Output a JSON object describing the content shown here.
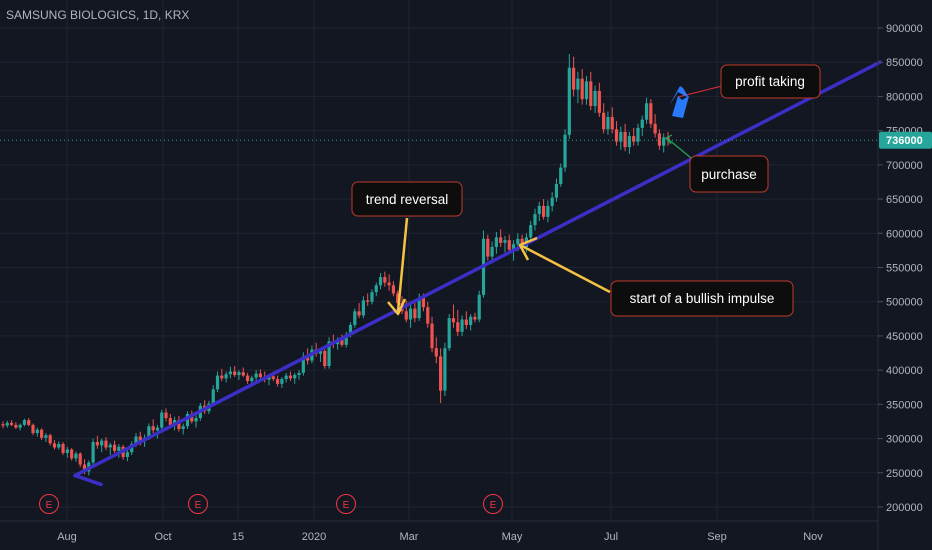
{
  "header": {
    "title": "SAMSUNG BIOLOGICS, 1D, KRX"
  },
  "theme": {
    "background": "#131722",
    "grid": "#1f2430",
    "up_color": "#26a69a",
    "down_color": "#ef5350",
    "trendline_color": "#3c2fc8",
    "annotation_border": "#c0392b",
    "yellow_arrow": "#f5c242",
    "red_arrow": "#e0303a",
    "green_arrow": "#22aa55",
    "blue_arrow": "#2979ff",
    "price_line_color": "#26a69a"
  },
  "chart_data": {
    "type": "candlestick",
    "title": "SAMSUNG BIOLOGICS, 1D, KRX",
    "x_ticks": [
      "Aug",
      "Oct",
      "15",
      "2020",
      "Mar",
      "May",
      "Jul",
      "Sep",
      "Nov"
    ],
    "y_ticks": [
      200000,
      250000,
      300000,
      350000,
      400000,
      450000,
      500000,
      550000,
      600000,
      650000,
      700000,
      750000,
      800000,
      850000,
      900000
    ],
    "ylim": [
      185000,
      920000
    ],
    "last_price": 736000,
    "last_price_label": "736000",
    "earnings_markers": [
      "E",
      "E",
      "E",
      "E"
    ],
    "series": [
      {
        "values": [
          [
            321000,
            325000,
            315000,
            319000
          ],
          [
            319000,
            326000,
            316000,
            323000
          ],
          [
            323000,
            327000,
            318000,
            320000
          ],
          [
            320000,
            324000,
            314000,
            316000
          ],
          [
            316000,
            322000,
            312000,
            320000
          ],
          [
            320000,
            329000,
            318000,
            327000
          ],
          [
            327000,
            330000,
            318000,
            320000
          ],
          [
            320000,
            322000,
            305000,
            308000
          ],
          [
            308000,
            316000,
            303000,
            313000
          ],
          [
            313000,
            315000,
            298000,
            301000
          ],
          [
            301000,
            308000,
            295000,
            305000
          ],
          [
            305000,
            307000,
            290000,
            293000
          ],
          [
            293000,
            298000,
            284000,
            287000
          ],
          [
            287000,
            296000,
            284000,
            292000
          ],
          [
            292000,
            295000,
            276000,
            279000
          ],
          [
            279000,
            288000,
            272000,
            284000
          ],
          [
            284000,
            286000,
            268000,
            271000
          ],
          [
            271000,
            281000,
            266000,
            278000
          ],
          [
            278000,
            280000,
            258000,
            262000
          ],
          [
            262000,
            270000,
            248000,
            252000
          ],
          [
            252000,
            268000,
            246000,
            265000
          ],
          [
            265000,
            300000,
            262000,
            295000
          ],
          [
            295000,
            304000,
            285000,
            290000
          ],
          [
            290000,
            300000,
            280000,
            297000
          ],
          [
            297000,
            302000,
            283000,
            287000
          ],
          [
            287000,
            294000,
            276000,
            291000
          ],
          [
            291000,
            297000,
            279000,
            282000
          ],
          [
            282000,
            292000,
            272000,
            288000
          ],
          [
            288000,
            291000,
            269000,
            273000
          ],
          [
            273000,
            284000,
            267000,
            280000
          ],
          [
            280000,
            296000,
            276000,
            292000
          ],
          [
            292000,
            308000,
            288000,
            303000
          ],
          [
            303000,
            310000,
            290000,
            296000
          ],
          [
            296000,
            306000,
            288000,
            301000
          ],
          [
            301000,
            322000,
            298000,
            318000
          ],
          [
            318000,
            328000,
            308000,
            312000
          ],
          [
            312000,
            320000,
            300000,
            316000
          ],
          [
            316000,
            342000,
            312000,
            338000
          ],
          [
            338000,
            344000,
            325000,
            330000
          ],
          [
            330000,
            336000,
            316000,
            320000
          ],
          [
            320000,
            332000,
            312000,
            327000
          ],
          [
            327000,
            333000,
            310000,
            314000
          ],
          [
            314000,
            322000,
            306000,
            318000
          ],
          [
            318000,
            340000,
            314000,
            336000
          ],
          [
            336000,
            341000,
            322000,
            325000
          ],
          [
            325000,
            334000,
            316000,
            330000
          ],
          [
            330000,
            352000,
            326000,
            348000
          ],
          [
            348000,
            356000,
            336000,
            340000
          ],
          [
            340000,
            355000,
            336000,
            351000
          ],
          [
            351000,
            378000,
            348000,
            372000
          ],
          [
            372000,
            398000,
            368000,
            392000
          ],
          [
            392000,
            402000,
            384000,
            388000
          ],
          [
            388000,
            398000,
            382000,
            394000
          ],
          [
            394000,
            405000,
            388000,
            398000
          ],
          [
            398000,
            406000,
            390000,
            393000
          ],
          [
            393000,
            400000,
            386000,
            397000
          ],
          [
            397000,
            404000,
            390000,
            392000
          ],
          [
            392000,
            396000,
            380000,
            384000
          ],
          [
            384000,
            392000,
            378000,
            389000
          ],
          [
            389000,
            400000,
            384000,
            395000
          ],
          [
            395000,
            401000,
            386000,
            390000
          ],
          [
            390000,
            398000,
            382000,
            386000
          ],
          [
            386000,
            394000,
            378000,
            391000
          ],
          [
            391000,
            398000,
            384000,
            387000
          ],
          [
            387000,
            392000,
            376000,
            380000
          ],
          [
            380000,
            390000,
            374000,
            387000
          ],
          [
            387000,
            396000,
            382000,
            392000
          ],
          [
            392000,
            398000,
            384000,
            388000
          ],
          [
            388000,
            396000,
            380000,
            393000
          ],
          [
            393000,
            400000,
            386000,
            396000
          ],
          [
            396000,
            426000,
            392000,
            420000
          ],
          [
            420000,
            432000,
            408000,
            414000
          ],
          [
            414000,
            436000,
            410000,
            430000
          ],
          [
            430000,
            440000,
            420000,
            424000
          ],
          [
            424000,
            432000,
            412000,
            428000
          ],
          [
            428000,
            436000,
            402000,
            406000
          ],
          [
            406000,
            448000,
            402000,
            442000
          ],
          [
            442000,
            452000,
            432000,
            438000
          ],
          [
            438000,
            448000,
            430000,
            444000
          ],
          [
            444000,
            452000,
            434000,
            437000
          ],
          [
            437000,
            456000,
            433000,
            452000
          ],
          [
            452000,
            470000,
            448000,
            466000
          ],
          [
            466000,
            490000,
            462000,
            486000
          ],
          [
            486000,
            498000,
            476000,
            480000
          ],
          [
            480000,
            508000,
            476000,
            502000
          ],
          [
            502000,
            512000,
            494000,
            500000
          ],
          [
            500000,
            518000,
            496000,
            514000
          ],
          [
            514000,
            528000,
            508000,
            524000
          ],
          [
            524000,
            542000,
            518000,
            536000
          ],
          [
            536000,
            544000,
            522000,
            528000
          ],
          [
            528000,
            540000,
            516000,
            524000
          ],
          [
            524000,
            530000,
            508000,
            512000
          ],
          [
            512000,
            516000,
            494000,
            498000
          ],
          [
            498000,
            508000,
            482000,
            486000
          ],
          [
            486000,
            502000,
            470000,
            474000
          ],
          [
            474000,
            496000,
            462000,
            490000
          ],
          [
            490000,
            498000,
            470000,
            476000
          ],
          [
            476000,
            512000,
            472000,
            506000
          ],
          [
            506000,
            512000,
            486000,
            492000
          ],
          [
            492000,
            500000,
            462000,
            468000
          ],
          [
            468000,
            478000,
            426000,
            432000
          ],
          [
            432000,
            448000,
            410000,
            420000
          ],
          [
            420000,
            432000,
            352000,
            370000
          ],
          [
            370000,
            440000,
            362000,
            432000
          ],
          [
            432000,
            482000,
            428000,
            476000
          ],
          [
            476000,
            496000,
            462000,
            470000
          ],
          [
            470000,
            488000,
            450000,
            456000
          ],
          [
            456000,
            480000,
            450000,
            474000
          ],
          [
            474000,
            486000,
            460000,
            466000
          ],
          [
            466000,
            482000,
            458000,
            478000
          ],
          [
            478000,
            484000,
            470000,
            474000
          ],
          [
            474000,
            516000,
            470000,
            510000
          ],
          [
            510000,
            604000,
            506000,
            592000
          ],
          [
            592000,
            598000,
            560000,
            566000
          ],
          [
            566000,
            588000,
            556000,
            580000
          ],
          [
            580000,
            602000,
            570000,
            594000
          ],
          [
            594000,
            606000,
            580000,
            586000
          ],
          [
            586000,
            596000,
            572000,
            590000
          ],
          [
            590000,
            598000,
            570000,
            576000
          ],
          [
            576000,
            590000,
            560000,
            584000
          ],
          [
            584000,
            600000,
            574000,
            592000
          ],
          [
            592000,
            598000,
            574000,
            580000
          ],
          [
            580000,
            600000,
            572000,
            594000
          ],
          [
            594000,
            618000,
            588000,
            612000
          ],
          [
            612000,
            636000,
            604000,
            628000
          ],
          [
            628000,
            646000,
            618000,
            640000
          ],
          [
            640000,
            650000,
            620000,
            624000
          ],
          [
            624000,
            648000,
            616000,
            640000
          ],
          [
            640000,
            660000,
            632000,
            652000
          ],
          [
            652000,
            680000,
            646000,
            672000
          ],
          [
            672000,
            702000,
            668000,
            696000
          ],
          [
            696000,
            752000,
            690000,
            744000
          ],
          [
            744000,
            862000,
            738000,
            842000
          ],
          [
            842000,
            858000,
            800000,
            810000
          ],
          [
            810000,
            836000,
            790000,
            826000
          ],
          [
            826000,
            840000,
            788000,
            796000
          ],
          [
            796000,
            830000,
            788000,
            822000
          ],
          [
            822000,
            836000,
            780000,
            786000
          ],
          [
            786000,
            816000,
            776000,
            808000
          ],
          [
            808000,
            820000,
            770000,
            776000
          ],
          [
            776000,
            790000,
            746000,
            752000
          ],
          [
            752000,
            778000,
            744000,
            770000
          ],
          [
            770000,
            784000,
            746000,
            752000
          ],
          [
            752000,
            764000,
            728000,
            734000
          ],
          [
            734000,
            756000,
            722000,
            748000
          ],
          [
            748000,
            760000,
            720000,
            726000
          ],
          [
            726000,
            748000,
            716000,
            742000
          ],
          [
            742000,
            754000,
            728000,
            734000
          ],
          [
            734000,
            760000,
            728000,
            754000
          ],
          [
            754000,
            772000,
            742000,
            766000
          ],
          [
            766000,
            798000,
            760000,
            790000
          ],
          [
            790000,
            796000,
            754000,
            760000
          ],
          [
            760000,
            774000,
            740000,
            746000
          ],
          [
            746000,
            752000,
            722000,
            728000
          ],
          [
            728000,
            746000,
            718000,
            740000
          ],
          [
            740000,
            748000,
            728000,
            736000
          ]
        ]
      }
    ],
    "trendlines": [
      {
        "from": [
          "Aug",
          246000
        ],
        "to": [
          "end",
          850000
        ]
      },
      {
        "from": [
          "Aug",
          246000
        ],
        "to": [
          "Aug+",
          233000
        ]
      }
    ],
    "annotations": [
      {
        "text": "profit taking"
      },
      {
        "text": "purchase"
      },
      {
        "text": "trend reversal"
      },
      {
        "text": "start of a bullish impulse"
      }
    ]
  }
}
